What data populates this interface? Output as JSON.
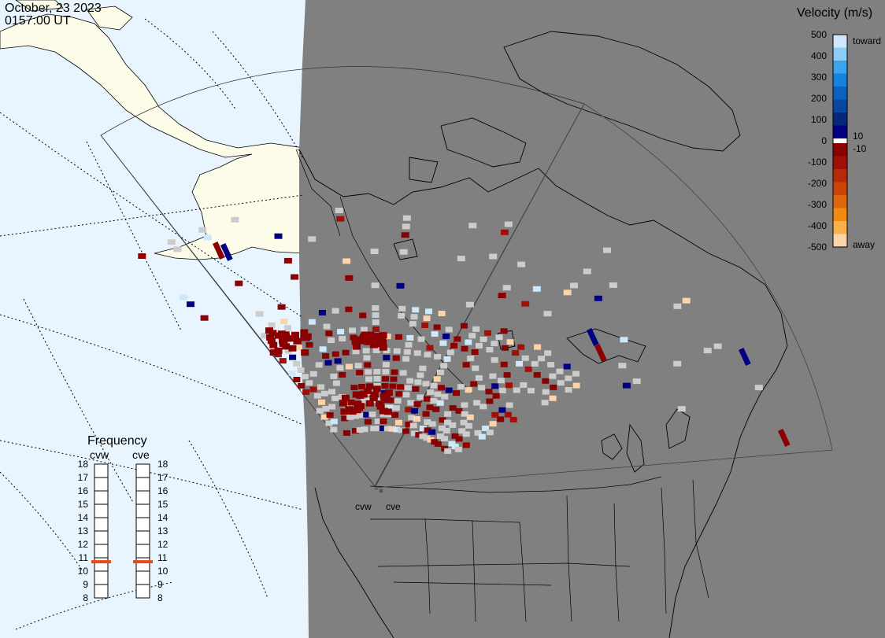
{
  "header": {
    "date": "October, 23 2023",
    "time": "0157:00 UT"
  },
  "velocity_scale": {
    "title": "Velocity (m/s)",
    "tick_labels": [
      "500",
      "400",
      "300",
      "200",
      "100",
      "0",
      "-100",
      "-200",
      "-300",
      "-400",
      "-500"
    ],
    "toward_label": "toward",
    "away_label": "away",
    "near_zero_positive": "10",
    "near_zero_negative": "-10",
    "positive_colors": [
      "#cce8fa",
      "#8ccdf5",
      "#3aa5ee",
      "#1781e0",
      "#0a62c0",
      "#0a45a0",
      "#08267a",
      "#000080"
    ],
    "negative_colors": [
      "#8b0000",
      "#a01008",
      "#b52a08",
      "#cc4408",
      "#e0640a",
      "#f08a10",
      "#f7b24a",
      "#fdd4a8"
    ]
  },
  "frequency": {
    "title": "Frequency",
    "radars": [
      "cvw",
      "cve"
    ],
    "labels": [
      "18",
      "17",
      "16",
      "15",
      "14",
      "13",
      "12",
      "11",
      "10",
      "9",
      "8"
    ],
    "current_mhz": [
      10.7,
      10.7
    ],
    "marker_color": "#e84a14"
  },
  "map": {
    "radar_sites": [
      "cvw",
      "cve"
    ],
    "ocean_color": "#e8f5ff",
    "land_color": "#fcfce8",
    "night_color": "#808080",
    "ground_scatter_color": "#cccccc"
  }
}
